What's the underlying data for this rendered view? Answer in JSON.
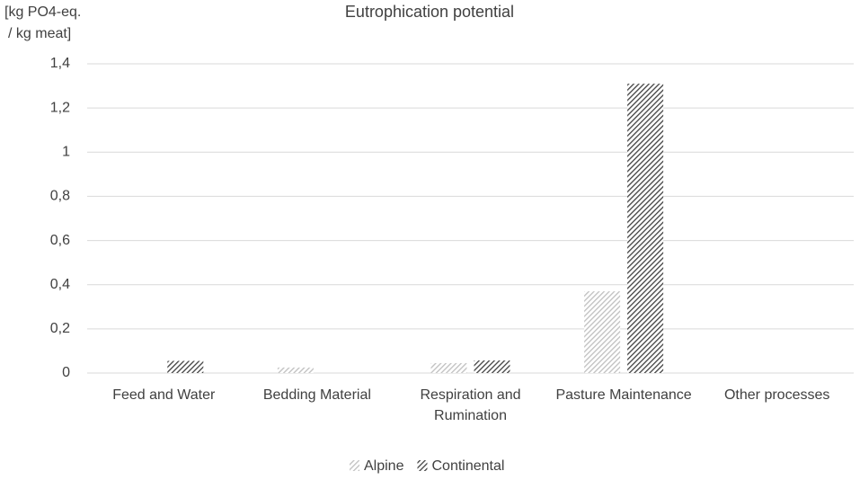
{
  "chart_data": {
    "type": "bar",
    "title": "Eutrophication potential",
    "y_label": [
      "[kg PO4-eq.",
      "/ kg meat]"
    ],
    "categories": [
      "Feed and Water",
      "Bedding Material",
      "Respiration and Rumination",
      "Pasture Maintenance",
      "Other processes"
    ],
    "series": [
      {
        "name": "Alpine",
        "color": "#bfbfbf",
        "values": [
          0,
          0.025,
          0.045,
          0.37,
          0
        ]
      },
      {
        "name": "Continental",
        "color": "#404040",
        "values": [
          0.055,
          0,
          0.057,
          1.31,
          0
        ]
      }
    ],
    "ylim": [
      0,
      1.4
    ],
    "yticks": [
      0,
      {
        "value": 0.2,
        "label": "0,2"
      },
      {
        "value": 0.4,
        "label": "0,4"
      },
      {
        "value": 0.6,
        "label": "0,6"
      },
      {
        "value": 0.8,
        "label": "0,8"
      },
      1,
      {
        "value": 1.2,
        "label": "1,2"
      },
      {
        "value": 1.4,
        "label": "1,4"
      }
    ],
    "grid": true,
    "legend": "bottom"
  }
}
